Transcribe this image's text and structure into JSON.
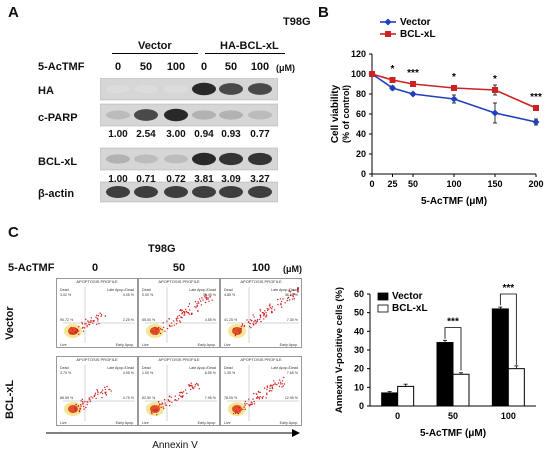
{
  "panelA": {
    "letter": "A",
    "cell_line": "T98G",
    "treatment_label": "5-AcTMF",
    "unit": "(μM)",
    "groups": [
      "Vector",
      "HA-BCL-xL"
    ],
    "doses": [
      "0",
      "50",
      "100",
      "0",
      "50",
      "100"
    ],
    "blots": [
      {
        "label": "HA",
        "band": [
          0.05,
          0.05,
          0.05,
          0.9,
          0.75,
          0.75
        ]
      },
      {
        "label": "c-PARP",
        "band": [
          0.2,
          0.75,
          0.9,
          0.25,
          0.25,
          0.2
        ]
      },
      {
        "label": "BCL-xL",
        "band": [
          0.25,
          0.2,
          0.2,
          0.9,
          0.85,
          0.85
        ]
      },
      {
        "label": "β-actin",
        "band": [
          0.8,
          0.8,
          0.8,
          0.8,
          0.8,
          0.8
        ]
      }
    ],
    "cparp_values": [
      "1.00",
      "2.54",
      "3.00",
      "0.94",
      "0.93",
      "0.77"
    ],
    "bclxl_values": [
      "1.00",
      "0.71",
      "0.72",
      "3.81",
      "3.09",
      "3.27"
    ]
  },
  "panelB": {
    "letter": "B",
    "colors": {
      "vector": "#1f3fbf",
      "bclxl": "#cc2222"
    },
    "chart_data": {
      "type": "line",
      "x": [
        0,
        25,
        50,
        100,
        150,
        200
      ],
      "xlabel": "5-AcTMF (μM)",
      "ylabel_line1": "Cell viability",
      "ylabel_line2": "(% of control)",
      "ylim": [
        0,
        120
      ],
      "yticks": [
        "0",
        "20",
        "40",
        "60",
        "80",
        "100",
        "120"
      ],
      "xticks": [
        "0",
        "25",
        "50",
        "100",
        "150",
        "200"
      ],
      "series": [
        {
          "name": "Vector",
          "values": [
            100,
            86,
            80,
            75,
            61,
            52
          ],
          "err": [
            0,
            2,
            1.5,
            4,
            10,
            3
          ]
        },
        {
          "name": "BCL-xL",
          "values": [
            100,
            94,
            90,
            86,
            84,
            66
          ],
          "err": [
            0,
            2,
            1.5,
            2,
            5,
            2
          ]
        }
      ],
      "significance": [
        "",
        "*",
        "***",
        "*",
        "*",
        "***"
      ]
    }
  },
  "panelC": {
    "letter": "C",
    "cell_line": "T98G",
    "treatment_label": "5-AcTMF",
    "unit": "(μM)",
    "doses": [
      "0",
      "50",
      "100"
    ],
    "rows": [
      "Vector",
      "BCL-xL"
    ],
    "xaxis_label": "Annexin V",
    "flow_header": "APOPTOSIS PROFILE",
    "quadrant_labels": {
      "dead": "Dead",
      "late": "Late Apop./Dead",
      "live": "Live",
      "early": "Early Apop."
    },
    "flow_values": [
      {
        "dead": "3.02 %",
        "late": "4.05 %",
        "early": "2.25 %",
        "live": "90.72 %"
      },
      {
        "dead": "0.00 %",
        "late": "30.45 %",
        "early": "4.55 %",
        "live": "65.00 %"
      },
      {
        "dead": "4.85 %",
        "late": "46.55 %",
        "early": "7.35 %",
        "live": "41.25 %"
      },
      {
        "dead": "3.75 %",
        "late": "4.95 %",
        "early": "4.75 %",
        "live": "86.55 %"
      },
      {
        "dead": "1.00 %",
        "late": "8.55 %",
        "early": "7.95 %",
        "live": "82.50 %"
      },
      {
        "dead": "1.35 %",
        "late": "7.65 %",
        "early": "12.95 %",
        "live": "78.05 %"
      }
    ],
    "flow_density": [
      0.15,
      0.55,
      0.8,
      0.2,
      0.3,
      0.4
    ],
    "bar_chart": {
      "type": "bar",
      "categories": [
        "0",
        "50",
        "100"
      ],
      "xlabel": "5-AcTMF (μM)",
      "ylabel": "Annexin V-positive cells (%)",
      "ylim": [
        0,
        60
      ],
      "yticks": [
        "0",
        "10",
        "20",
        "30",
        "40",
        "50",
        "60"
      ],
      "series": [
        {
          "name": "Vector",
          "values": [
            7,
            34,
            52
          ],
          "err": [
            0.7,
            1.2,
            1.0
          ],
          "color": "#000000"
        },
        {
          "name": "BCL-xL",
          "values": [
            10.5,
            17,
            20
          ],
          "err": [
            1.2,
            0.8,
            1.5
          ],
          "color": "#ffffff"
        }
      ],
      "significance": [
        "",
        "***",
        "***"
      ]
    }
  }
}
